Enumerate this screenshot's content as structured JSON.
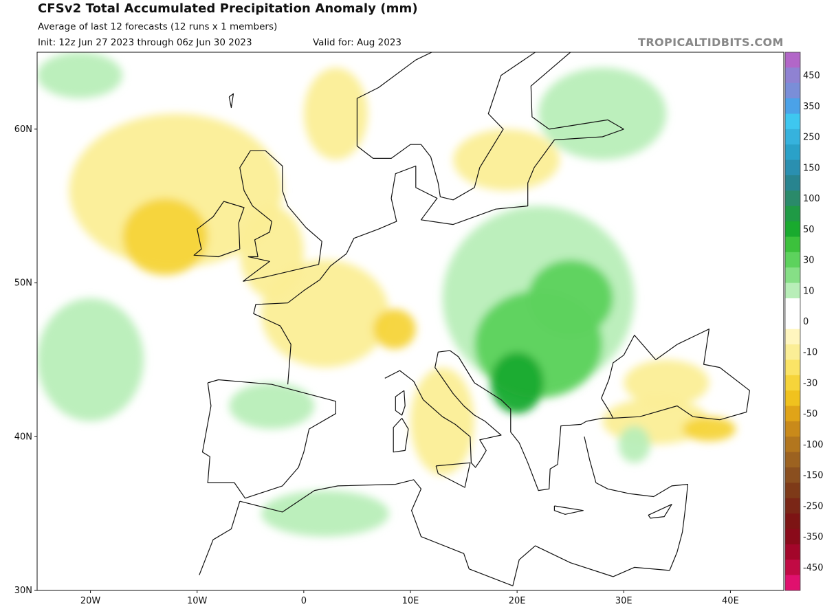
{
  "header": {
    "title": "CFSv2 Total Accumulated Precipitation Anomaly (mm)",
    "subtitle": "Average of last 12 forecasts (12 runs x 1 members)",
    "init": "Init: 12z Jun 27 2023 through 06z Jun 30 2023",
    "valid": "Valid for: Aug 2023",
    "credit": "TROPICALTIDBITS.COM"
  },
  "map": {
    "lon_range": [
      -25,
      45
    ],
    "lat_range": [
      30,
      65
    ],
    "lon_ticks": [
      {
        "value": -20,
        "label": "20W"
      },
      {
        "value": -10,
        "label": "10W"
      },
      {
        "value": 0,
        "label": "0"
      },
      {
        "value": 10,
        "label": "10E"
      },
      {
        "value": 20,
        "label": "20E"
      },
      {
        "value": 30,
        "label": "30E"
      },
      {
        "value": 40,
        "label": "40E"
      }
    ],
    "lat_ticks": [
      {
        "value": 30,
        "label": "30N"
      },
      {
        "value": 40,
        "label": "40N"
      },
      {
        "value": 50,
        "label": "50N"
      },
      {
        "value": 60,
        "label": "60N"
      }
    ],
    "colors": {
      "ocean": "#ffffff",
      "land": "#ffffff",
      "coast": "#111111",
      "border": "#555555"
    }
  },
  "anomaly_regions": [
    {
      "name": "atlantic-north-dry",
      "level": -10,
      "lon": -12,
      "lat": 56,
      "rlon": 10,
      "rlat": 5
    },
    {
      "name": "atlantic-core-dry",
      "level": -30,
      "lon": -13,
      "lat": 53,
      "rlon": 4,
      "rlat": 2.5
    },
    {
      "name": "uk-dry",
      "level": -10,
      "lon": -3,
      "lat": 52,
      "rlon": 3,
      "rlat": 3
    },
    {
      "name": "france-dry",
      "level": -10,
      "lon": 2,
      "lat": 48,
      "rlon": 6,
      "rlat": 3.5
    },
    {
      "name": "alps-dry",
      "level": -30,
      "lon": 8.5,
      "lat": 47,
      "rlon": 2,
      "rlat": 1.3
    },
    {
      "name": "norway-dry",
      "level": -10,
      "lon": 3,
      "lat": 61,
      "rlon": 3,
      "rlat": 3
    },
    {
      "name": "baltic-dry",
      "level": -10,
      "lon": 19,
      "lat": 58,
      "rlon": 5,
      "rlat": 2
    },
    {
      "name": "italy-dry",
      "level": -10,
      "lon": 13,
      "lat": 41,
      "rlon": 3,
      "rlat": 3.5
    },
    {
      "name": "turkey-dry",
      "level": -10,
      "lon": 33,
      "lat": 41,
      "rlon": 5,
      "rlat": 1.5
    },
    {
      "name": "turkey-east-dry",
      "level": -30,
      "lon": 38,
      "lat": 40.5,
      "rlon": 2.5,
      "rlat": 0.8
    },
    {
      "name": "black-sea-dry",
      "level": -10,
      "lon": 34,
      "lat": 43.5,
      "rlon": 4,
      "rlat": 1.5
    },
    {
      "name": "eastern-europe-wet",
      "level": 10,
      "lon": 22,
      "lat": 49,
      "rlon": 9,
      "rlat": 6
    },
    {
      "name": "balkans-wet",
      "level": 30,
      "lon": 22,
      "lat": 46,
      "rlon": 6,
      "rlat": 3.5
    },
    {
      "name": "serbia-wet",
      "level": 50,
      "lon": 20,
      "lat": 43.5,
      "rlon": 2.5,
      "rlat": 2
    },
    {
      "name": "romania-wet",
      "level": 30,
      "lon": 25,
      "lat": 49,
      "rlon": 4,
      "rlat": 2.5
    },
    {
      "name": "atlantic-west-wet",
      "level": 10,
      "lon": -20,
      "lat": 45,
      "rlon": 5,
      "rlat": 4
    },
    {
      "name": "spain-wet",
      "level": 10,
      "lon": -3,
      "lat": 42,
      "rlon": 4,
      "rlat": 1.5
    },
    {
      "name": "algeria-wet",
      "level": 10,
      "lon": 2,
      "lat": 35,
      "rlon": 6,
      "rlat": 1.5
    },
    {
      "name": "scandinavia-wet",
      "level": 10,
      "lon": 28,
      "lat": 61,
      "rlon": 6,
      "rlat": 3
    },
    {
      "name": "north-atlantic-wet",
      "level": 10,
      "lon": -21,
      "lat": 63.5,
      "rlon": 4,
      "rlat": 1.5
    },
    {
      "name": "anatolia-wet",
      "level": 10,
      "lon": 31,
      "lat": 39.5,
      "rlon": 1.5,
      "rlat": 1.2
    }
  ],
  "colorbar": {
    "levels": [
      {
        "label": "",
        "color": "#b266c8"
      },
      {
        "label": "450",
        "color": "#8f82d2"
      },
      {
        "label": "",
        "color": "#7a8ed8"
      },
      {
        "label": "350",
        "color": "#4ba2e8"
      },
      {
        "label": "",
        "color": "#3ec7f0"
      },
      {
        "label": "250",
        "color": "#36b2dd"
      },
      {
        "label": "",
        "color": "#2aa1c8"
      },
      {
        "label": "150",
        "color": "#2a8fb0"
      },
      {
        "label": "",
        "color": "#28848f"
      },
      {
        "label": "100",
        "color": "#2a8a6a"
      },
      {
        "label": "",
        "color": "#1f9a45"
      },
      {
        "label": "50",
        "color": "#19aa2e"
      },
      {
        "label": "",
        "color": "#3cc13c"
      },
      {
        "label": "30",
        "color": "#5dd25d"
      },
      {
        "label": "",
        "color": "#86df86"
      },
      {
        "label": "10",
        "color": "#b8eeb8"
      },
      {
        "label": "",
        "color": "#ffffff"
      },
      {
        "label": "0",
        "color": "#ffffff"
      },
      {
        "label": "",
        "color": "#fff6bf"
      },
      {
        "label": "-10",
        "color": "#fbee96"
      },
      {
        "label": "",
        "color": "#fbe466"
      },
      {
        "label": "-30",
        "color": "#f6d43a"
      },
      {
        "label": "",
        "color": "#f0c21e"
      },
      {
        "label": "-50",
        "color": "#e0a418"
      },
      {
        "label": "",
        "color": "#c98a1a"
      },
      {
        "label": "-100",
        "color": "#b2761e"
      },
      {
        "label": "",
        "color": "#9c6220"
      },
      {
        "label": "-150",
        "color": "#8a4f1f"
      },
      {
        "label": "",
        "color": "#7e3a18"
      },
      {
        "label": "-250",
        "color": "#7a2616"
      },
      {
        "label": "",
        "color": "#7d1414"
      },
      {
        "label": "-350",
        "color": "#8a0a1a"
      },
      {
        "label": "",
        "color": "#a3062a"
      },
      {
        "label": "-450",
        "color": "#c10a44"
      },
      {
        "label": "",
        "color": "#e0106e"
      }
    ]
  }
}
